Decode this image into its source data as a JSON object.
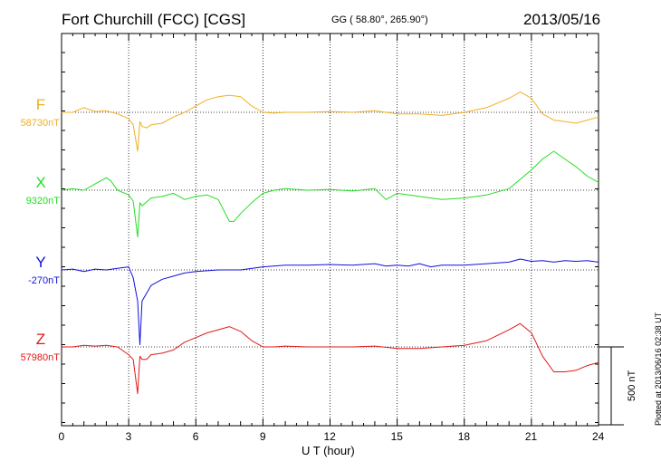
{
  "header": {
    "title": "Fort Churchill (FCC)  [CGS]",
    "coords": "GG ( 58.80°, 265.90°)",
    "date": "2013/05/16"
  },
  "footer": {
    "plotted": "Plotted at 2013/06/16 02:38 UT",
    "scale": "500 nT"
  },
  "chart_data": {
    "type": "line",
    "xlabel": "U T (hour)",
    "xlim": [
      0,
      24
    ],
    "xticks": [
      "0",
      "3",
      "6",
      "9",
      "12",
      "15",
      "18",
      "21",
      "24"
    ],
    "scale_bar_nT": 500,
    "grid": "dotted",
    "series": [
      {
        "name": "F",
        "baseline": "58730nT",
        "color": "#f0b020",
        "x": [
          0,
          0.5,
          1,
          1.5,
          2,
          2.5,
          3,
          3.2,
          3.4,
          3.5,
          3.6,
          3.8,
          4,
          4.5,
          5,
          5.5,
          6,
          6.5,
          7,
          7.5,
          8,
          8.5,
          9,
          9.5,
          10,
          11,
          12,
          13,
          14,
          15,
          16,
          17,
          18,
          19,
          20,
          20.5,
          21,
          21.5,
          22,
          22.5,
          23,
          23.5,
          24
        ],
        "values": [
          0,
          0,
          30,
          5,
          10,
          -10,
          -40,
          -80,
          -250,
          -60,
          -90,
          -100,
          -80,
          -70,
          -30,
          0,
          40,
          80,
          100,
          110,
          100,
          40,
          0,
          -5,
          0,
          0,
          5,
          0,
          10,
          -10,
          -10,
          -20,
          0,
          30,
          90,
          130,
          90,
          -10,
          -50,
          -60,
          -70,
          -50,
          -30
        ]
      },
      {
        "name": "X",
        "baseline": "9320nT",
        "color": "#22dd22",
        "x": [
          0,
          0.5,
          1,
          1.5,
          2,
          2.2,
          2.5,
          3,
          3.2,
          3.4,
          3.5,
          3.6,
          4,
          4.5,
          5,
          5.5,
          6,
          6.5,
          7,
          7.5,
          7.7,
          8,
          8.5,
          9,
          9.5,
          10,
          11,
          12,
          13,
          14,
          14.5,
          15,
          16,
          17,
          18,
          19,
          20,
          20.5,
          21,
          21.5,
          22,
          22.5,
          23,
          23.5,
          24
        ],
        "values": [
          0,
          10,
          0,
          40,
          80,
          60,
          0,
          -30,
          -70,
          -300,
          -80,
          -100,
          -50,
          -40,
          -20,
          -60,
          -40,
          -30,
          -60,
          -200,
          -200,
          -150,
          -80,
          -20,
          0,
          10,
          0,
          5,
          -5,
          10,
          -60,
          -20,
          -40,
          -60,
          -50,
          -30,
          10,
          70,
          130,
          200,
          250,
          200,
          150,
          90,
          50
        ]
      },
      {
        "name": "Y",
        "baseline": "-270nT",
        "color": "#1010dd",
        "x": [
          0,
          0.5,
          1,
          1.5,
          2,
          2.5,
          3,
          3.2,
          3.4,
          3.5,
          3.6,
          3.8,
          4,
          4.5,
          5,
          5.5,
          6,
          7,
          8,
          9,
          10,
          11,
          12,
          13,
          14,
          14.5,
          15,
          15.5,
          16,
          16.5,
          17,
          18,
          19,
          20,
          20.5,
          21,
          21.5,
          22,
          22.5,
          23,
          23.5,
          24
        ],
        "values": [
          0,
          5,
          -10,
          5,
          0,
          10,
          20,
          -50,
          -200,
          -480,
          -200,
          -150,
          -100,
          -60,
          -40,
          -20,
          -10,
          0,
          0,
          20,
          30,
          30,
          35,
          30,
          40,
          25,
          30,
          25,
          40,
          20,
          30,
          30,
          40,
          50,
          70,
          55,
          60,
          50,
          60,
          55,
          60,
          50
        ]
      },
      {
        "name": "Z",
        "baseline": "57980nT",
        "color": "#e01818",
        "x": [
          0,
          0.5,
          1,
          1.5,
          2,
          2.5,
          3,
          3.2,
          3.4,
          3.5,
          3.6,
          3.8,
          4,
          4.5,
          5,
          5.5,
          6,
          6.5,
          7,
          7.5,
          8,
          8.5,
          9,
          9.5,
          10,
          11,
          12,
          13,
          14,
          15,
          16,
          17,
          18,
          19,
          20,
          20.5,
          21,
          21.5,
          22,
          22.5,
          23,
          23.5,
          24
        ],
        "values": [
          0,
          0,
          10,
          5,
          10,
          0,
          -50,
          -80,
          -300,
          -60,
          -80,
          -80,
          -50,
          -40,
          -20,
          30,
          60,
          90,
          110,
          130,
          100,
          40,
          0,
          0,
          5,
          0,
          0,
          0,
          5,
          -10,
          -10,
          0,
          10,
          40,
          110,
          150,
          90,
          -60,
          -160,
          -160,
          -150,
          -120,
          -100
        ]
      }
    ]
  }
}
